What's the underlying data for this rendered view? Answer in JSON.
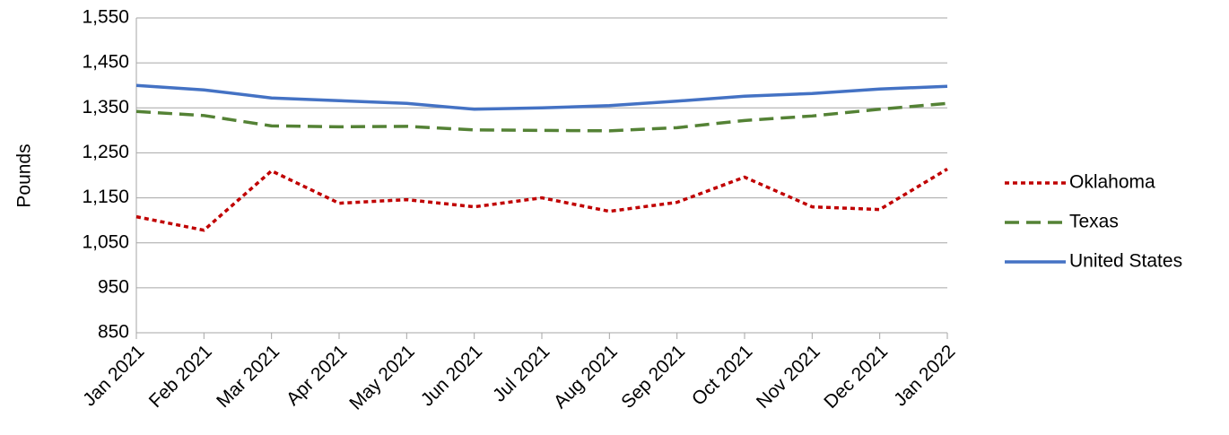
{
  "chart_data": {
    "type": "line",
    "y_label": "Pounds",
    "categories": [
      "Jan 2021",
      "Feb 2021",
      "Mar 2021",
      "Apr 2021",
      "May 2021",
      "Jun 2021",
      "Jul 2021",
      "Aug 2021",
      "Sep 2021",
      "Oct 2021",
      "Nov 2021",
      "Dec 2021",
      "Jan 2022"
    ],
    "series": [
      {
        "name": "Oklahoma",
        "color": "#c00000",
        "line_style": "dotted",
        "values": [
          1108,
          1078,
          1210,
          1138,
          1146,
          1130,
          1150,
          1120,
          1140,
          1196,
          1130,
          1124,
          1214
        ]
      },
      {
        "name": "Texas",
        "color": "#548235",
        "line_style": "dashed",
        "values": [
          1342,
          1333,
          1310,
          1308,
          1309,
          1301,
          1300,
          1299,
          1306,
          1322,
          1332,
          1347,
          1360
        ]
      },
      {
        "name": "United States",
        "color": "#4472c4",
        "line_style": "solid",
        "values": [
          1400,
          1390,
          1372,
          1366,
          1360,
          1347,
          1350,
          1355,
          1365,
          1376,
          1382,
          1392,
          1398
        ]
      }
    ],
    "ylim": [
      850,
      1550
    ],
    "yticks": [
      {
        "value": 850,
        "label": "850"
      },
      {
        "value": 950,
        "label": "950"
      },
      {
        "value": 1050,
        "label": "1,050"
      },
      {
        "value": 1150,
        "label": "1,150"
      },
      {
        "value": 1250,
        "label": "1,250"
      },
      {
        "value": 1350,
        "label": "1,350"
      },
      {
        "value": 1450,
        "label": "1,450"
      },
      {
        "value": 1550,
        "label": "1,550"
      }
    ],
    "grid": true,
    "legend": "right"
  }
}
